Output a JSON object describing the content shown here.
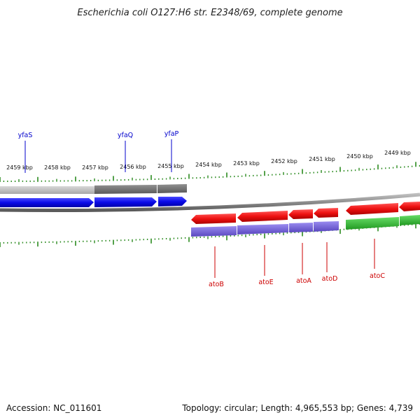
{
  "title": "Escherichia coli O127:H6 str. E2348/69, complete genome",
  "footer": {
    "accession": "Accession: NC_011601",
    "summary": "Topology: circular; Length: 4,965,553 bp; Genes: 4,739"
  },
  "colors": {
    "tick": "#2a8a1e",
    "backbone": "#888888",
    "forward_gene": "#1010ee",
    "reverse_gene": "#ee1111",
    "forward_track_shade": "#7a7a7a",
    "reverse_track_shade": "#6a5acd",
    "regulator_track": "#33bb33",
    "label_top": "#0000cc",
    "label_bottom": "#cc0000"
  },
  "scale_labels": [
    "2459 kbp",
    "2458 kbp",
    "2457 kbp",
    "2456 kbp",
    "2455 kbp",
    "2454 kbp",
    "2453 kbp",
    "2452 kbp",
    "2451 kbp",
    "2450 kbp",
    "2449 kbp"
  ],
  "genes_top": [
    {
      "name": "yfaS"
    },
    {
      "name": "yfaQ"
    },
    {
      "name": "yfaP"
    }
  ],
  "genes_bottom": [
    {
      "name": "atoB"
    },
    {
      "name": "atoE"
    },
    {
      "name": "atoA"
    },
    {
      "name": "atoD"
    },
    {
      "name": "atoC"
    }
  ]
}
